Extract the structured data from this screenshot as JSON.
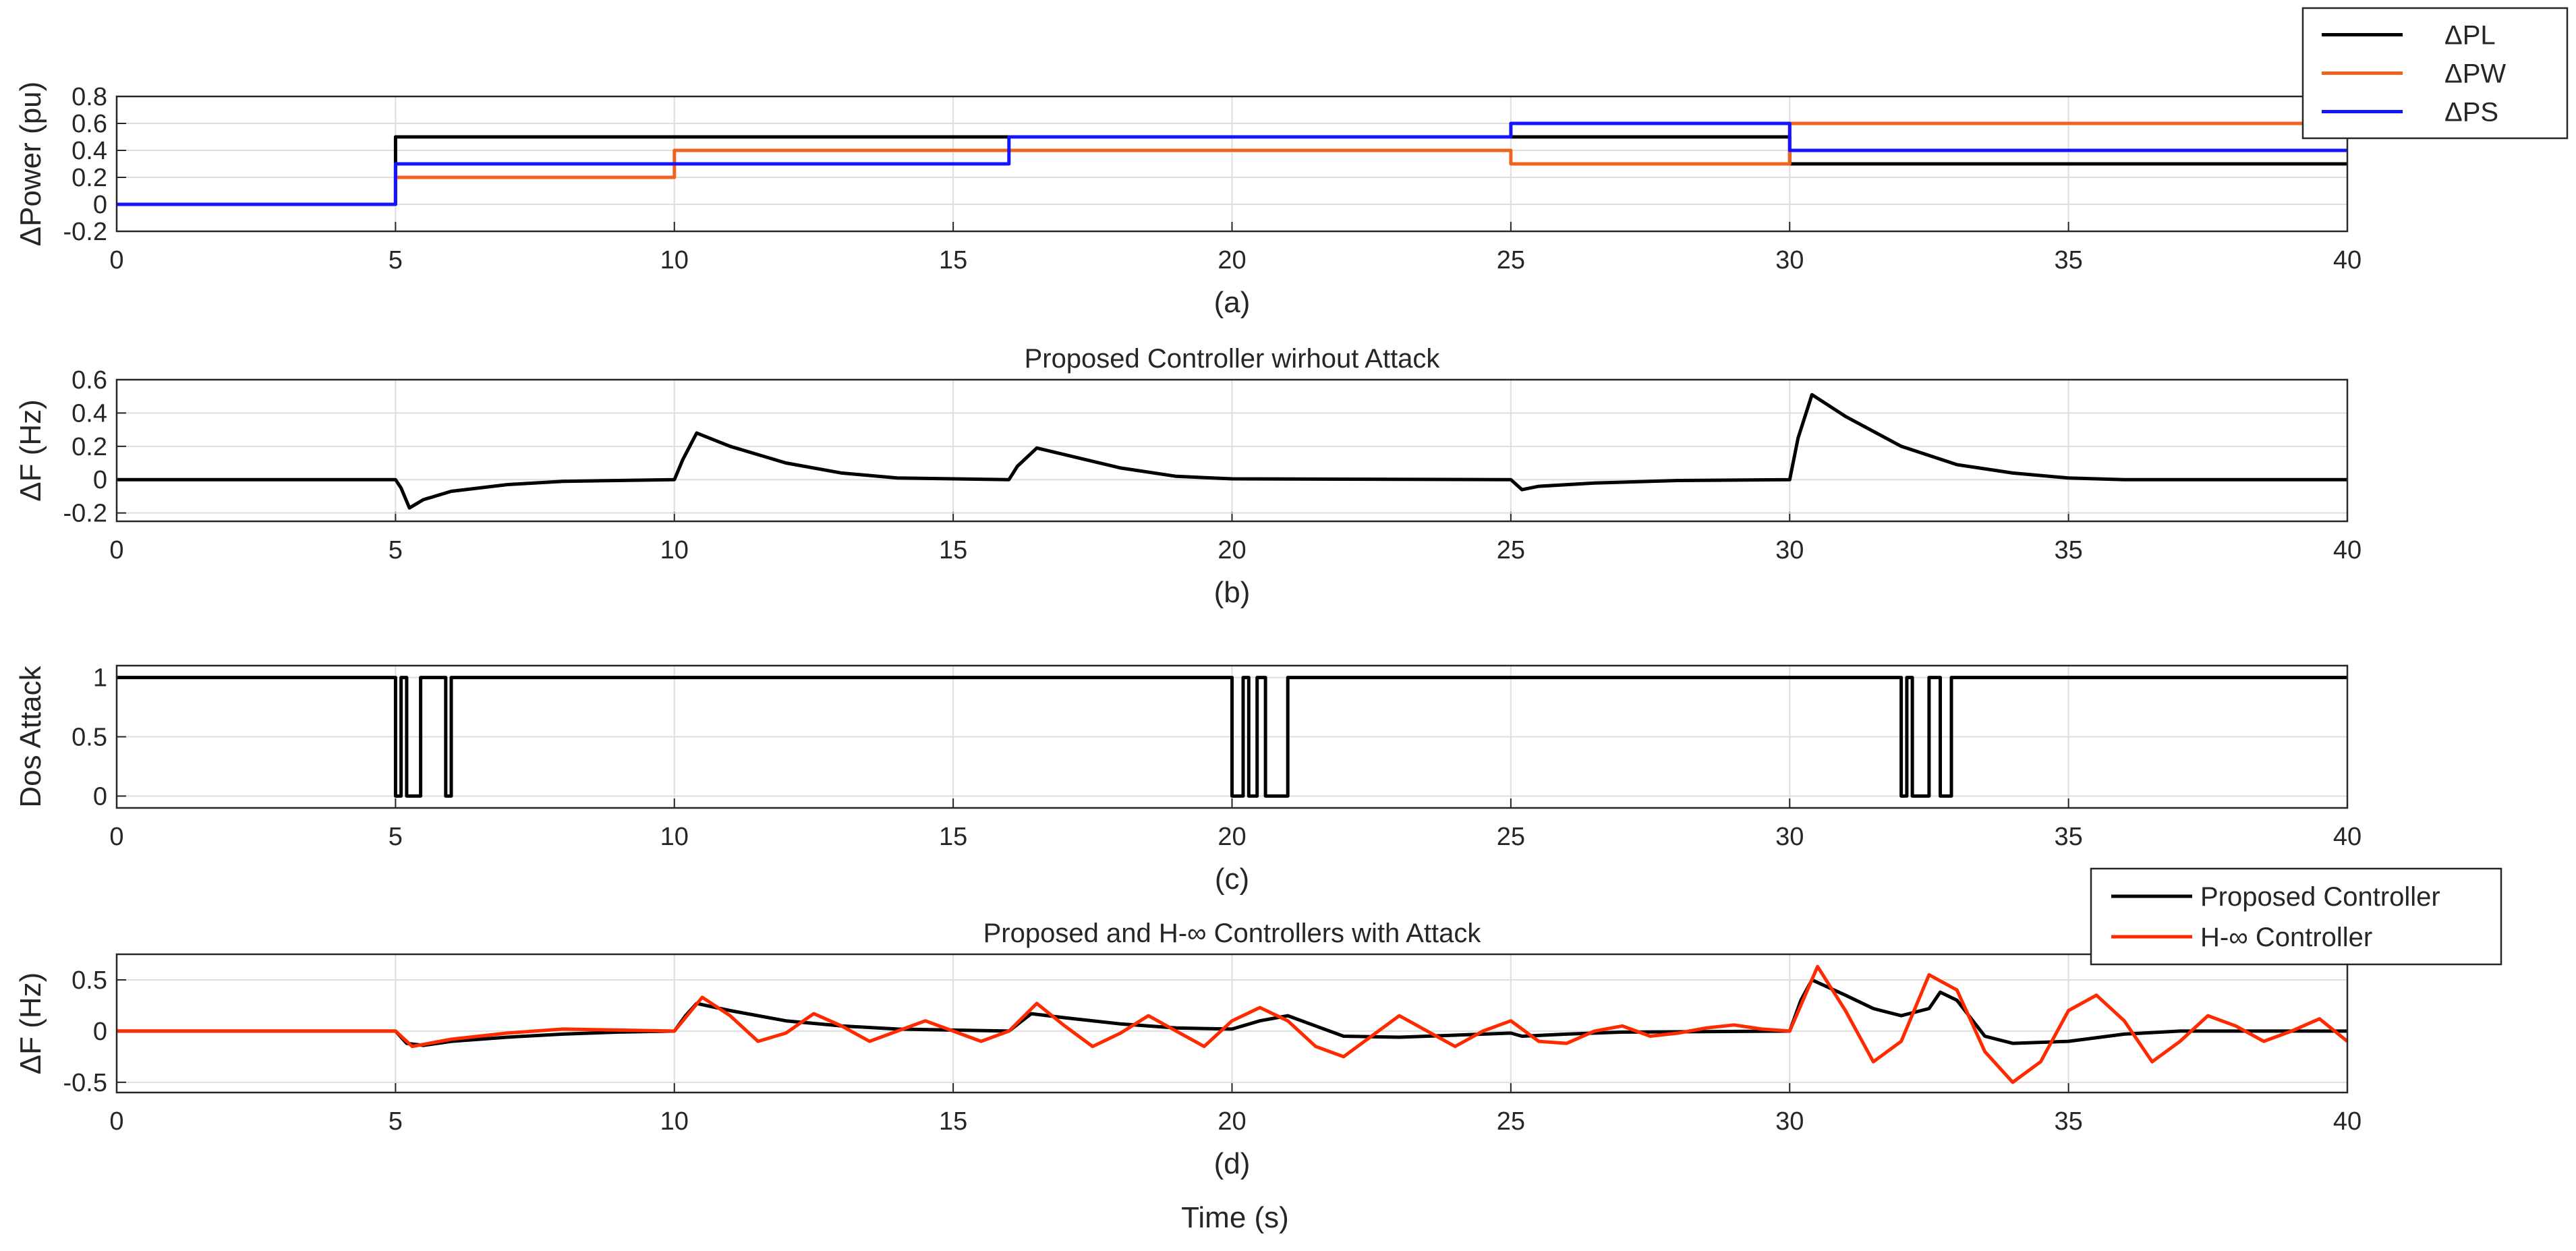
{
  "figure": {
    "xlabel": "Time (s)"
  },
  "chart_data": [
    {
      "id": "a",
      "type": "line",
      "subplot_label": "(a)",
      "title": "",
      "ylabel": "ΔPower (pu)",
      "xlabel": "",
      "xlim": [
        0,
        40
      ],
      "ylim": [
        -0.2,
        0.8
      ],
      "xticks": [
        0,
        5,
        10,
        15,
        20,
        25,
        30,
        35,
        40
      ],
      "yticks": [
        -0.2,
        0,
        0.2,
        0.4,
        0.6,
        0.8
      ],
      "grid": true,
      "legend_position": "top-right, outside plot",
      "series": [
        {
          "name": "ΔPL",
          "color": "#000000",
          "points": [
            [
              0,
              0
            ],
            [
              5,
              0
            ],
            [
              5,
              0.5
            ],
            [
              25,
              0.5
            ],
            [
              25,
              0.5
            ],
            [
              30,
              0.5
            ],
            [
              30,
              0.3
            ],
            [
              40,
              0.3
            ]
          ]
        },
        {
          "name": "ΔPW",
          "color": "#f0631e",
          "points": [
            [
              0,
              0
            ],
            [
              5,
              0
            ],
            [
              5,
              0.2
            ],
            [
              10,
              0.2
            ],
            [
              10,
              0.4
            ],
            [
              25,
              0.4
            ],
            [
              25,
              0.3
            ],
            [
              30,
              0.3
            ],
            [
              30,
              0.6
            ],
            [
              40,
              0.6
            ]
          ]
        },
        {
          "name": "ΔPS",
          "color": "#1414ff",
          "points": [
            [
              0,
              0
            ],
            [
              5,
              0
            ],
            [
              5,
              0.3
            ],
            [
              16,
              0.3
            ],
            [
              16,
              0.5
            ],
            [
              25,
              0.5
            ],
            [
              25,
              0.6
            ],
            [
              30,
              0.6
            ],
            [
              30,
              0.4
            ],
            [
              40,
              0.4
            ]
          ]
        }
      ]
    },
    {
      "id": "b",
      "type": "line",
      "subplot_label": "(b)",
      "title": "Proposed Controller wirhout Attack",
      "ylabel": "ΔF (Hz)",
      "xlabel": "",
      "xlim": [
        0,
        40
      ],
      "ylim": [
        -0.25,
        0.6
      ],
      "xticks": [
        0,
        5,
        10,
        15,
        20,
        25,
        30,
        35,
        40
      ],
      "yticks": [
        -0.2,
        0,
        0.2,
        0.4,
        0.6
      ],
      "grid": true,
      "series": [
        {
          "name": "",
          "color": "#000000",
          "points": [
            [
              0,
              0
            ],
            [
              5,
              0
            ],
            [
              5.1,
              -0.05
            ],
            [
              5.25,
              -0.17
            ],
            [
              5.5,
              -0.12
            ],
            [
              6,
              -0.07
            ],
            [
              7,
              -0.03
            ],
            [
              8,
              -0.01
            ],
            [
              10,
              0
            ],
            [
              10.15,
              0.12
            ],
            [
              10.4,
              0.28
            ],
            [
              11,
              0.2
            ],
            [
              12,
              0.1
            ],
            [
              13,
              0.04
            ],
            [
              14,
              0.01
            ],
            [
              16,
              0
            ],
            [
              16.15,
              0.08
            ],
            [
              16.5,
              0.19
            ],
            [
              17,
              0.15
            ],
            [
              18,
              0.07
            ],
            [
              19,
              0.02
            ],
            [
              20,
              0.005
            ],
            [
              25,
              0
            ],
            [
              25.2,
              -0.06
            ],
            [
              25.5,
              -0.04
            ],
            [
              26.5,
              -0.02
            ],
            [
              28,
              -0.005
            ],
            [
              30,
              0
            ],
            [
              30.15,
              0.25
            ],
            [
              30.4,
              0.51
            ],
            [
              31,
              0.38
            ],
            [
              32,
              0.2
            ],
            [
              33,
              0.09
            ],
            [
              34,
              0.04
            ],
            [
              35,
              0.01
            ],
            [
              36,
              0
            ],
            [
              40,
              0
            ]
          ]
        }
      ]
    },
    {
      "id": "c",
      "type": "line",
      "subplot_label": "(c)",
      "title": "",
      "ylabel": "Dos Attack",
      "xlabel": "",
      "xlim": [
        0,
        40
      ],
      "ylim": [
        -0.1,
        1.1
      ],
      "xticks": [
        0,
        5,
        10,
        15,
        20,
        25,
        30,
        35,
        40
      ],
      "yticks": [
        0,
        0.5,
        1
      ],
      "grid": true,
      "series": [
        {
          "name": "",
          "color": "#000000",
          "points": [
            [
              0,
              1
            ],
            [
              5,
              1
            ],
            [
              5,
              0
            ],
            [
              5.1,
              0
            ],
            [
              5.1,
              1
            ],
            [
              5.2,
              1
            ],
            [
              5.2,
              0
            ],
            [
              5.45,
              0
            ],
            [
              5.45,
              1
            ],
            [
              5.9,
              1
            ],
            [
              5.9,
              0
            ],
            [
              6,
              0
            ],
            [
              6,
              1
            ],
            [
              20,
              1
            ],
            [
              20,
              0
            ],
            [
              20.2,
              0
            ],
            [
              20.2,
              1
            ],
            [
              20.3,
              1
            ],
            [
              20.3,
              0
            ],
            [
              20.45,
              0
            ],
            [
              20.45,
              1
            ],
            [
              20.6,
              1
            ],
            [
              20.6,
              0
            ],
            [
              21,
              0
            ],
            [
              21,
              1
            ],
            [
              32,
              1
            ],
            [
              32,
              0
            ],
            [
              32.1,
              0
            ],
            [
              32.1,
              1
            ],
            [
              32.2,
              1
            ],
            [
              32.2,
              0
            ],
            [
              32.5,
              0
            ],
            [
              32.5,
              1
            ],
            [
              32.7,
              1
            ],
            [
              32.7,
              0
            ],
            [
              32.9,
              0
            ],
            [
              32.9,
              1
            ],
            [
              40,
              1
            ]
          ]
        }
      ]
    },
    {
      "id": "d",
      "type": "line",
      "subplot_label": "(d)",
      "title": "Proposed and H-∞ Controllers with Attack",
      "ylabel": "ΔF (Hz)",
      "xlabel": "",
      "xlim": [
        0,
        40
      ],
      "ylim": [
        -0.6,
        0.75
      ],
      "xticks": [
        0,
        5,
        10,
        15,
        20,
        25,
        30,
        35,
        40
      ],
      "yticks": [
        -0.5,
        0,
        0.5
      ],
      "grid": true,
      "legend_position": "top-right, overlapping plot",
      "series": [
        {
          "name": "Proposed Controller",
          "color": "#000000",
          "points": [
            [
              0,
              0
            ],
            [
              5,
              0
            ],
            [
              5.2,
              -0.12
            ],
            [
              5.5,
              -0.14
            ],
            [
              6,
              -0.1
            ],
            [
              7,
              -0.06
            ],
            [
              8,
              -0.03
            ],
            [
              9,
              -0.01
            ],
            [
              10,
              0
            ],
            [
              10.2,
              0.15
            ],
            [
              10.4,
              0.27
            ],
            [
              11,
              0.2
            ],
            [
              12,
              0.1
            ],
            [
              13,
              0.05
            ],
            [
              14,
              0.02
            ],
            [
              16,
              0
            ],
            [
              16.4,
              0.17
            ],
            [
              17,
              0.13
            ],
            [
              18,
              0.07
            ],
            [
              19,
              0.03
            ],
            [
              20,
              0.02
            ],
            [
              20.5,
              0.1
            ],
            [
              21,
              0.15
            ],
            [
              21.5,
              0.05
            ],
            [
              22,
              -0.05
            ],
            [
              23,
              -0.06
            ],
            [
              24,
              -0.04
            ],
            [
              25,
              -0.02
            ],
            [
              25.2,
              -0.05
            ],
            [
              26,
              -0.03
            ],
            [
              27,
              -0.01
            ],
            [
              30,
              0
            ],
            [
              30.2,
              0.3
            ],
            [
              30.4,
              0.5
            ],
            [
              31,
              0.35
            ],
            [
              31.5,
              0.22
            ],
            [
              32,
              0.15
            ],
            [
              32.5,
              0.22
            ],
            [
              32.7,
              0.38
            ],
            [
              33,
              0.3
            ],
            [
              33.5,
              -0.05
            ],
            [
              34,
              -0.12
            ],
            [
              35,
              -0.1
            ],
            [
              36,
              -0.03
            ],
            [
              37,
              0
            ],
            [
              40,
              0
            ]
          ]
        },
        {
          "name": "H-∞ Controller",
          "color": "#ff2a00",
          "points": [
            [
              0,
              0
            ],
            [
              5,
              0
            ],
            [
              5.3,
              -0.15
            ],
            [
              6,
              -0.08
            ],
            [
              7,
              -0.02
            ],
            [
              8,
              0.02
            ],
            [
              9,
              0.01
            ],
            [
              10,
              0
            ],
            [
              10.5,
              0.33
            ],
            [
              11,
              0.15
            ],
            [
              11.5,
              -0.1
            ],
            [
              12,
              -0.02
            ],
            [
              12.5,
              0.17
            ],
            [
              13,
              0.05
            ],
            [
              13.5,
              -0.1
            ],
            [
              14,
              0
            ],
            [
              14.5,
              0.1
            ],
            [
              15,
              0
            ],
            [
              15.5,
              -0.1
            ],
            [
              16,
              0
            ],
            [
              16.5,
              0.27
            ],
            [
              17,
              0.05
            ],
            [
              17.5,
              -0.15
            ],
            [
              18,
              -0.02
            ],
            [
              18.5,
              0.15
            ],
            [
              19,
              0
            ],
            [
              19.5,
              -0.15
            ],
            [
              20,
              0.1
            ],
            [
              20.5,
              0.23
            ],
            [
              21,
              0.1
            ],
            [
              21.5,
              -0.15
            ],
            [
              22,
              -0.25
            ],
            [
              22.5,
              -0.05
            ],
            [
              23,
              0.15
            ],
            [
              23.5,
              0
            ],
            [
              24,
              -0.15
            ],
            [
              24.5,
              0
            ],
            [
              25,
              0.1
            ],
            [
              25.5,
              -0.1
            ],
            [
              26,
              -0.12
            ],
            [
              26.5,
              0
            ],
            [
              27,
              0.05
            ],
            [
              27.5,
              -0.05
            ],
            [
              28,
              -0.02
            ],
            [
              28.5,
              0.03
            ],
            [
              29,
              0.06
            ],
            [
              29.5,
              0.02
            ],
            [
              30,
              0
            ],
            [
              30.5,
              0.63
            ],
            [
              31,
              0.2
            ],
            [
              31.5,
              -0.3
            ],
            [
              32,
              -0.1
            ],
            [
              32.5,
              0.55
            ],
            [
              33,
              0.4
            ],
            [
              33.5,
              -0.2
            ],
            [
              34,
              -0.5
            ],
            [
              34.5,
              -0.3
            ],
            [
              35,
              0.2
            ],
            [
              35.5,
              0.35
            ],
            [
              36,
              0.1
            ],
            [
              36.5,
              -0.3
            ],
            [
              37,
              -0.1
            ],
            [
              37.5,
              0.15
            ],
            [
              38,
              0.05
            ],
            [
              38.5,
              -0.1
            ],
            [
              39,
              0
            ],
            [
              39.5,
              0.12
            ],
            [
              40,
              -0.1
            ]
          ]
        }
      ]
    }
  ]
}
